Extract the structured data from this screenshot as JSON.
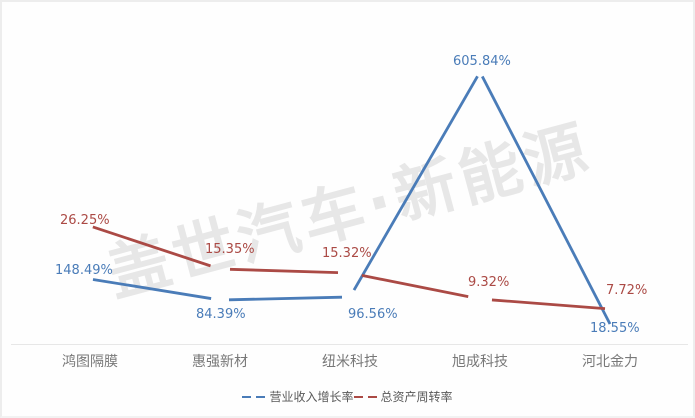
{
  "watermark": "盖世汽车·新能源",
  "colors": {
    "blue_series": "#4a7cb8",
    "red_series": "#ab4a45",
    "axis_line": "#e7e7e7",
    "category_text": "#787878",
    "legend_text": "#595959",
    "watermark_text": "#e7e7e7",
    "background": "#fefefe"
  },
  "chart_data": {
    "type": "line",
    "title": "",
    "xlabel": "",
    "ylabel": "",
    "grid": false,
    "legend_position": "bottom",
    "categories": [
      "鸿图隔膜",
      "惠强新材",
      "纽米科技",
      "旭成科技",
      "河北金力"
    ],
    "series": [
      {
        "name": "营业收入增长率",
        "color": "#4a7cb8",
        "values": [
          148.49,
          84.39,
          96.56,
          605.84,
          18.55
        ],
        "labels": [
          "148.49%",
          "84.39%",
          "96.56%",
          "605.84%",
          "18.55%"
        ]
      },
      {
        "name": "总资产周转率",
        "color": "#ab4a45",
        "values": [
          26.25,
          15.35,
          15.32,
          9.32,
          7.72
        ],
        "labels": [
          "26.25%",
          "15.35%",
          "15.32%",
          "9.32%",
          "7.72%"
        ]
      }
    ]
  }
}
